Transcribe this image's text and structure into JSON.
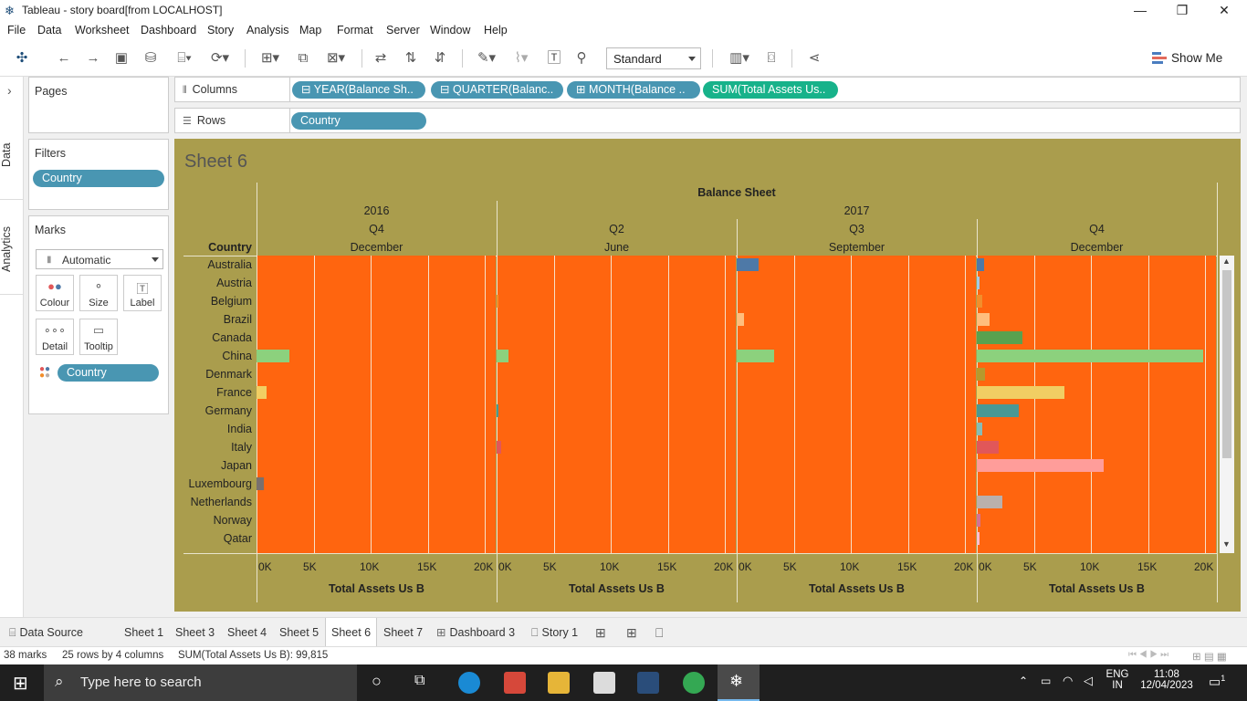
{
  "window": {
    "title": "Tableau - story board[from LOCALHOST]",
    "min": "—",
    "restore": "❐",
    "close": "✕"
  },
  "menu": [
    "File",
    "Data",
    "Worksheet",
    "Dashboard",
    "Story",
    "Analysis",
    "Map",
    "Format",
    "Server",
    "Window",
    "Help"
  ],
  "toolbar": {
    "fit_mode": "Standard",
    "show_me": "Show Me"
  },
  "sidebar": {
    "tab_data": "Data",
    "tab_analytics": "Analytics",
    "collapse": "›"
  },
  "pages": {
    "title": "Pages"
  },
  "filters": {
    "title": "Filters",
    "pills": [
      "Country"
    ]
  },
  "marks": {
    "title": "Marks",
    "type": "Automatic",
    "buttons": [
      {
        "label": "Colour",
        "icon": "colour-icon"
      },
      {
        "label": "Size",
        "icon": "size-icon"
      },
      {
        "label": "Label",
        "icon": "label-icon"
      },
      {
        "label": "Detail",
        "icon": "detail-icon"
      },
      {
        "label": "Tooltip",
        "icon": "tooltip-icon"
      }
    ],
    "color_pill": "Country"
  },
  "shelves": {
    "columns_label": "Columns",
    "rows_label": "Rows",
    "columns": [
      "YEAR(Balance Sh..",
      "QUARTER(Balanc..",
      "MONTH(Balance ..",
      "SUM(Total Assets Us.."
    ],
    "rows": [
      "Country"
    ],
    "col_prefix": [
      "⊟",
      "⊟",
      "⊞",
      ""
    ]
  },
  "sheet": {
    "title": "Sheet 6",
    "header_top": "Balance Sheet",
    "row_header": "Country",
    "panes": [
      {
        "year": "2016",
        "quarter": "Q4",
        "month": "December"
      },
      {
        "year": "",
        "quarter": "Q2",
        "month": "June"
      },
      {
        "year": "2017",
        "quarter": "Q3",
        "month": "September"
      },
      {
        "year": "",
        "quarter": "Q4",
        "month": "December"
      }
    ],
    "ticks": [
      "0K",
      "5K",
      "10K",
      "15K",
      "20K"
    ],
    "axis_title": "Total Assets Us B"
  },
  "chart_data": {
    "type": "bar",
    "categories": [
      "Australia",
      "Austria",
      "Belgium",
      "Brazil",
      "Canada",
      "China",
      "Denmark",
      "France",
      "Germany",
      "India",
      "Italy",
      "Japan",
      "Luxembourg",
      "Netherlands",
      "Norway",
      "Qatar"
    ],
    "colors": [
      "#4e79a7",
      "#a0cbe8",
      "#f28e2b",
      "#ffbe7d",
      "#59a14f",
      "#8cd17d",
      "#b6992d",
      "#f1ce63",
      "#499894",
      "#86bcb6",
      "#e15759",
      "#ff9d9a",
      "#79706e",
      "#bab0ac",
      "#d37295",
      "#fabfd2"
    ],
    "xlim": [
      0,
      21000
    ],
    "series": [
      {
        "name": "2016 Q4 December",
        "values": [
          0,
          0,
          0,
          0,
          0,
          2900,
          0,
          900,
          0,
          0,
          0,
          0,
          600,
          0,
          0,
          0
        ]
      },
      {
        "name": "2017 Q2 June",
        "values": [
          0,
          0,
          150,
          0,
          0,
          1000,
          0,
          0,
          150,
          0,
          400,
          0,
          0,
          0,
          0,
          0
        ]
      },
      {
        "name": "2017 Q3 September",
        "values": [
          1900,
          0,
          0,
          600,
          0,
          3300,
          0,
          0,
          0,
          0,
          0,
          0,
          0,
          0,
          0,
          0
        ]
      },
      {
        "name": "2017 Q4 December",
        "values": [
          600,
          200,
          500,
          1100,
          4000,
          19800,
          700,
          7700,
          3700,
          500,
          1900,
          11100,
          0,
          2200,
          300,
          200
        ]
      }
    ]
  },
  "tabs": [
    {
      "label": "Data Source",
      "icon": "⌸"
    },
    {
      "label": "Sheet 1"
    },
    {
      "label": "Sheet 3"
    },
    {
      "label": "Sheet 4"
    },
    {
      "label": "Sheet 5"
    },
    {
      "label": "Sheet 6",
      "active": true
    },
    {
      "label": "Sheet 7"
    },
    {
      "label": "Dashboard 3",
      "icon": "⊞"
    },
    {
      "label": "Story 1",
      "icon": "⎕"
    }
  ],
  "status": {
    "marks": "38 marks",
    "dims": "25 rows by 4 columns",
    "sum": "SUM(Total Assets Us B): 99,815"
  },
  "taskbar": {
    "search_placeholder": "Type here to search",
    "lang1": "ENG",
    "lang2": "IN",
    "time": "11:08",
    "date": "12/04/2023",
    "notif": "1"
  }
}
